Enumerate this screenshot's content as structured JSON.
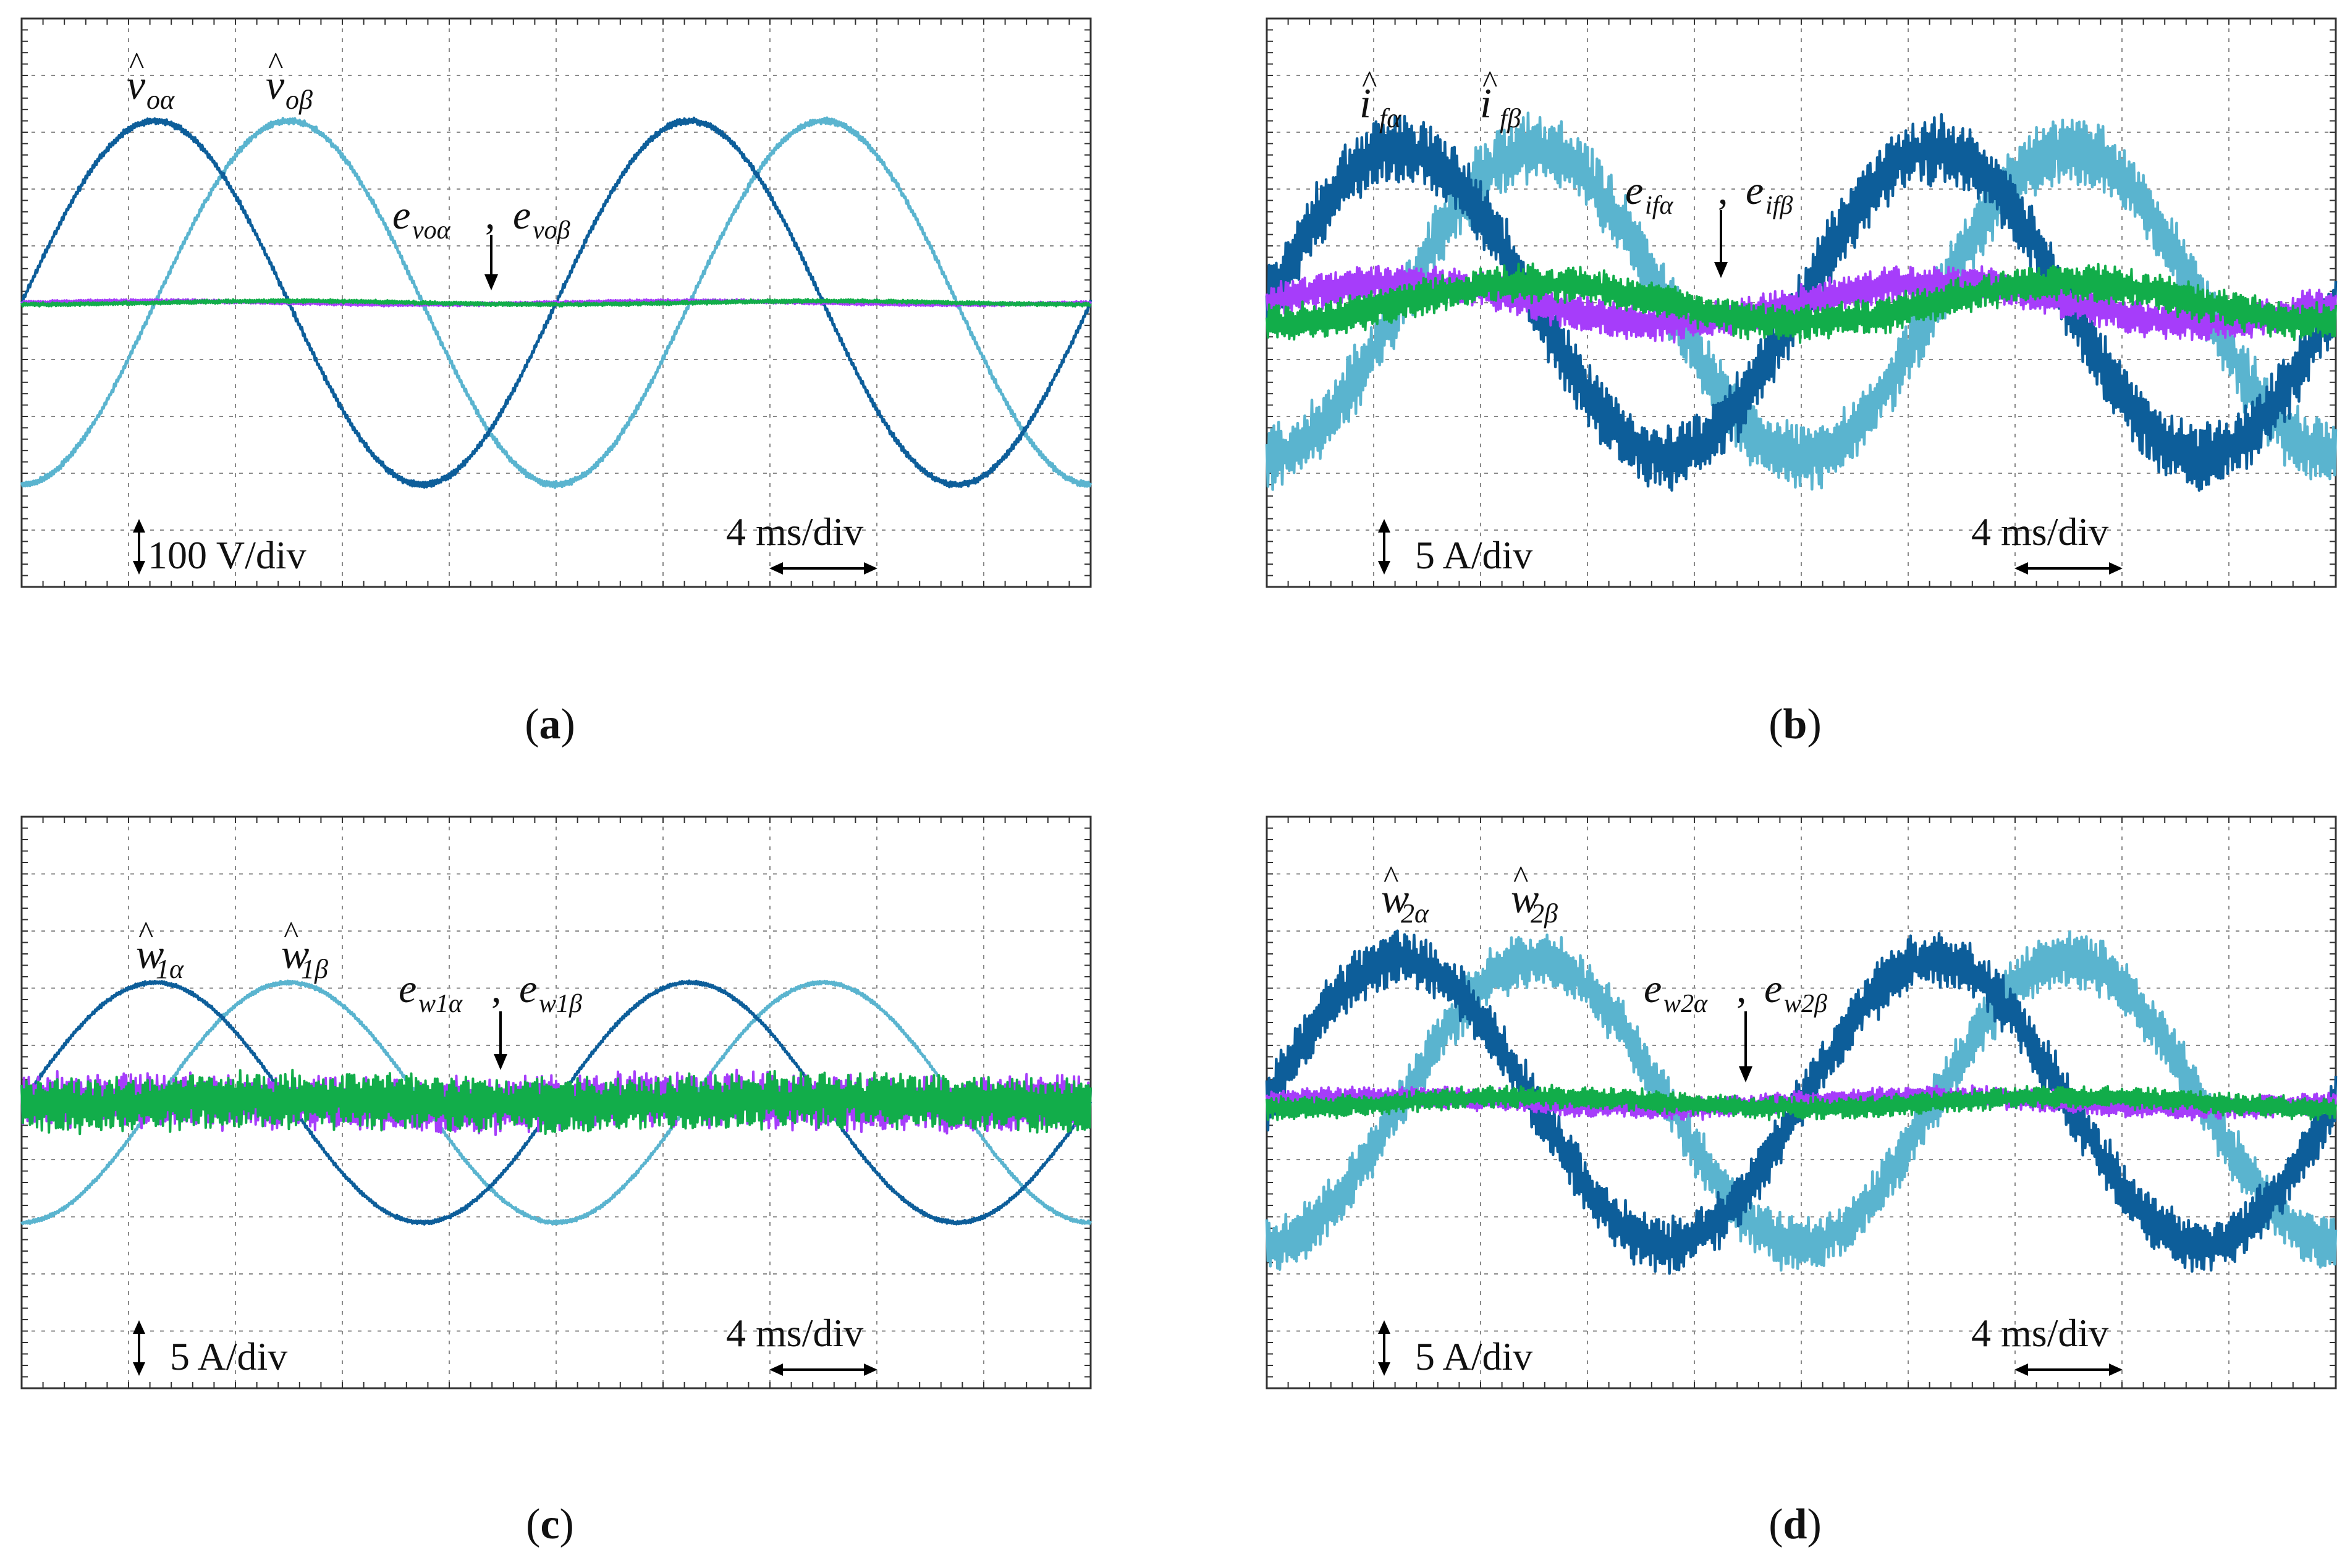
{
  "figure": {
    "panels": [
      {
        "id": "a",
        "caption": "a",
        "scale_label": "100 V/div",
        "time_label": "4 ms/div",
        "labels": {
          "sig1_main": "v",
          "sig1_sub": "oα",
          "sig2_main": "v",
          "sig2_sub": "oβ",
          "err1_main": "e",
          "err1_sub": "voα",
          "err_sep": ",",
          "err2_main": "e",
          "err2_sub": "voβ"
        }
      },
      {
        "id": "b",
        "caption": "b",
        "scale_label": "5 A/div",
        "time_label": "4 ms/div",
        "labels": {
          "sig1_main": "i",
          "sig1_sub": "fα",
          "sig2_main": "i",
          "sig2_sub": "fβ",
          "err1_main": "e",
          "err1_sub": "ifα",
          "err_sep": ",",
          "err2_main": "e",
          "err2_sub": "ifβ"
        }
      },
      {
        "id": "c",
        "caption": "c",
        "scale_label": "5 A/div",
        "time_label": "4 ms/div",
        "labels": {
          "sig1_main": "w",
          "sig1_sub": "1α",
          "sig2_main": "w",
          "sig2_sub": "1β",
          "err1_main": "e",
          "err1_sub": "w1α",
          "err_sep": ",",
          "err2_main": "e",
          "err2_sub": "w1β"
        }
      },
      {
        "id": "d",
        "caption": "d",
        "scale_label": "5 A/div",
        "time_label": "4 ms/div",
        "labels": {
          "sig1_main": "w",
          "sig1_sub": "2α",
          "sig2_main": "w",
          "sig2_sub": "2β",
          "err1_main": "e",
          "err1_sub": "w2α",
          "err_sep": ",",
          "err2_main": "e",
          "err2_sub": "w2β"
        }
      }
    ]
  },
  "colors": {
    "alpha": "#0d5e9a",
    "beta": "#5ab4cf",
    "err_alpha": "#a63dfa",
    "err_beta": "#12ad4a",
    "grid": "#8a8a8a",
    "frame": "#333333"
  },
  "chart_data": [
    {
      "type": "line",
      "title": "(a)",
      "xlabel": "4 ms/div",
      "ylabel": "100 V/div",
      "grid": true,
      "xlim_div": [
        0,
        10
      ],
      "ylim_div": [
        -5,
        5
      ],
      "period_div": 5,
      "series": [
        {
          "name": "v̂oα",
          "amplitude_div": 3.2,
          "phase_deg": 0,
          "noise_div": 0.05
        },
        {
          "name": "v̂oβ",
          "amplitude_div": 3.2,
          "phase_deg": -90,
          "noise_div": 0.05
        },
        {
          "name": "evoα",
          "amplitude_div": 0.03,
          "phase_deg": 0,
          "noise_div": 0.03
        },
        {
          "name": "evoβ",
          "amplitude_div": 0.03,
          "phase_deg": -90,
          "noise_div": 0.03
        }
      ]
    },
    {
      "type": "line",
      "title": "(b)",
      "xlabel": "4 ms/div",
      "ylabel": "5 A/div",
      "grid": true,
      "xlim_div": [
        0,
        10
      ],
      "ylim_div": [
        -5,
        5
      ],
      "period_div": 5,
      "series": [
        {
          "name": "îfα",
          "amplitude_div": 2.7,
          "phase_deg": 0,
          "noise_div": 0.55
        },
        {
          "name": "îfβ",
          "amplitude_div": 2.7,
          "phase_deg": -90,
          "noise_div": 0.55
        },
        {
          "name": "eifα",
          "amplitude_div": 0.35,
          "phase_deg": 0,
          "noise_div": 0.3
        },
        {
          "name": "eifβ",
          "amplitude_div": 0.35,
          "phase_deg": -90,
          "noise_div": 0.3
        }
      ]
    },
    {
      "type": "line",
      "title": "(c)",
      "xlabel": "4 ms/div",
      "ylabel": "5 A/div",
      "grid": true,
      "xlim_div": [
        0,
        10
      ],
      "ylim_div": [
        -5,
        5
      ],
      "period_div": 5,
      "series": [
        {
          "name": "ŵ1α",
          "amplitude_div": 2.1,
          "phase_deg": 0,
          "noise_div": 0.03
        },
        {
          "name": "ŵ1β",
          "amplitude_div": 2.1,
          "phase_deg": -90,
          "noise_div": 0.03
        },
        {
          "name": "ew1α",
          "amplitude_div": 0.05,
          "phase_deg": 0,
          "noise_div": 0.45
        },
        {
          "name": "ew1β",
          "amplitude_div": 0.05,
          "phase_deg": -90,
          "noise_div": 0.45
        }
      ]
    },
    {
      "type": "line",
      "title": "(d)",
      "xlabel": "4 ms/div",
      "ylabel": "5 A/div",
      "grid": true,
      "xlim_div": [
        0,
        10
      ],
      "ylim_div": [
        -5,
        5
      ],
      "period_div": 5,
      "series": [
        {
          "name": "ŵ2α",
          "amplitude_div": 2.5,
          "phase_deg": 0,
          "noise_div": 0.45
        },
        {
          "name": "ŵ2β",
          "amplitude_div": 2.5,
          "phase_deg": -90,
          "noise_div": 0.45
        },
        {
          "name": "ew2α",
          "amplitude_div": 0.1,
          "phase_deg": 0,
          "noise_div": 0.18
        },
        {
          "name": "ew2β",
          "amplitude_div": 0.1,
          "phase_deg": -90,
          "noise_div": 0.18
        }
      ]
    }
  ]
}
